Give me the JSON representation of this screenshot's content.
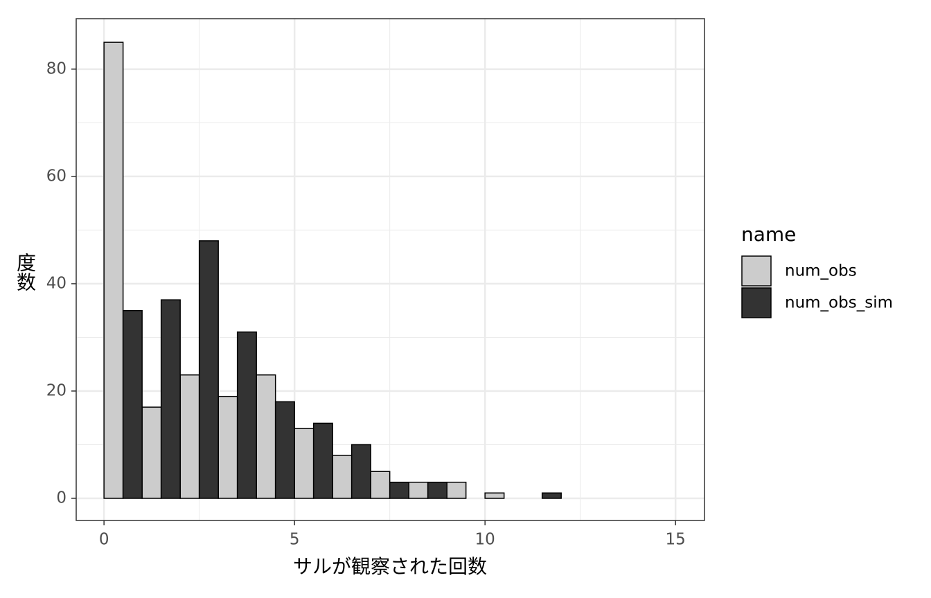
{
  "chart_data": {
    "type": "histogram",
    "x_label": "サルが観察された回数",
    "y_label": "度数",
    "legend_title": "name",
    "bins": [
      0,
      1,
      2,
      3,
      4,
      5,
      6,
      7,
      8,
      9,
      10,
      11,
      12,
      13,
      14,
      15
    ],
    "series": [
      {
        "name": "num_obs",
        "color": "#cccccc",
        "values": [
          85,
          17,
          23,
          19,
          23,
          13,
          8,
          5,
          3,
          3,
          1,
          0,
          0,
          0,
          0
        ]
      },
      {
        "name": "num_obs_sim",
        "color": "#333333",
        "values": [
          35,
          37,
          48,
          31,
          18,
          14,
          10,
          3,
          3,
          0,
          0,
          1,
          0,
          0,
          0
        ]
      }
    ],
    "xlim": [
      -0.73,
      15.76
    ],
    "ylim": [
      -4.13,
      89.4
    ],
    "xticks": [
      0,
      5,
      10,
      15
    ],
    "yticks": [
      0,
      20,
      40,
      60,
      80
    ],
    "xminorticks": [
      2.5,
      7.5,
      12.5
    ],
    "yminorticks": [
      10,
      30,
      50,
      70
    ],
    "grid": true,
    "legend_position": "right"
  }
}
